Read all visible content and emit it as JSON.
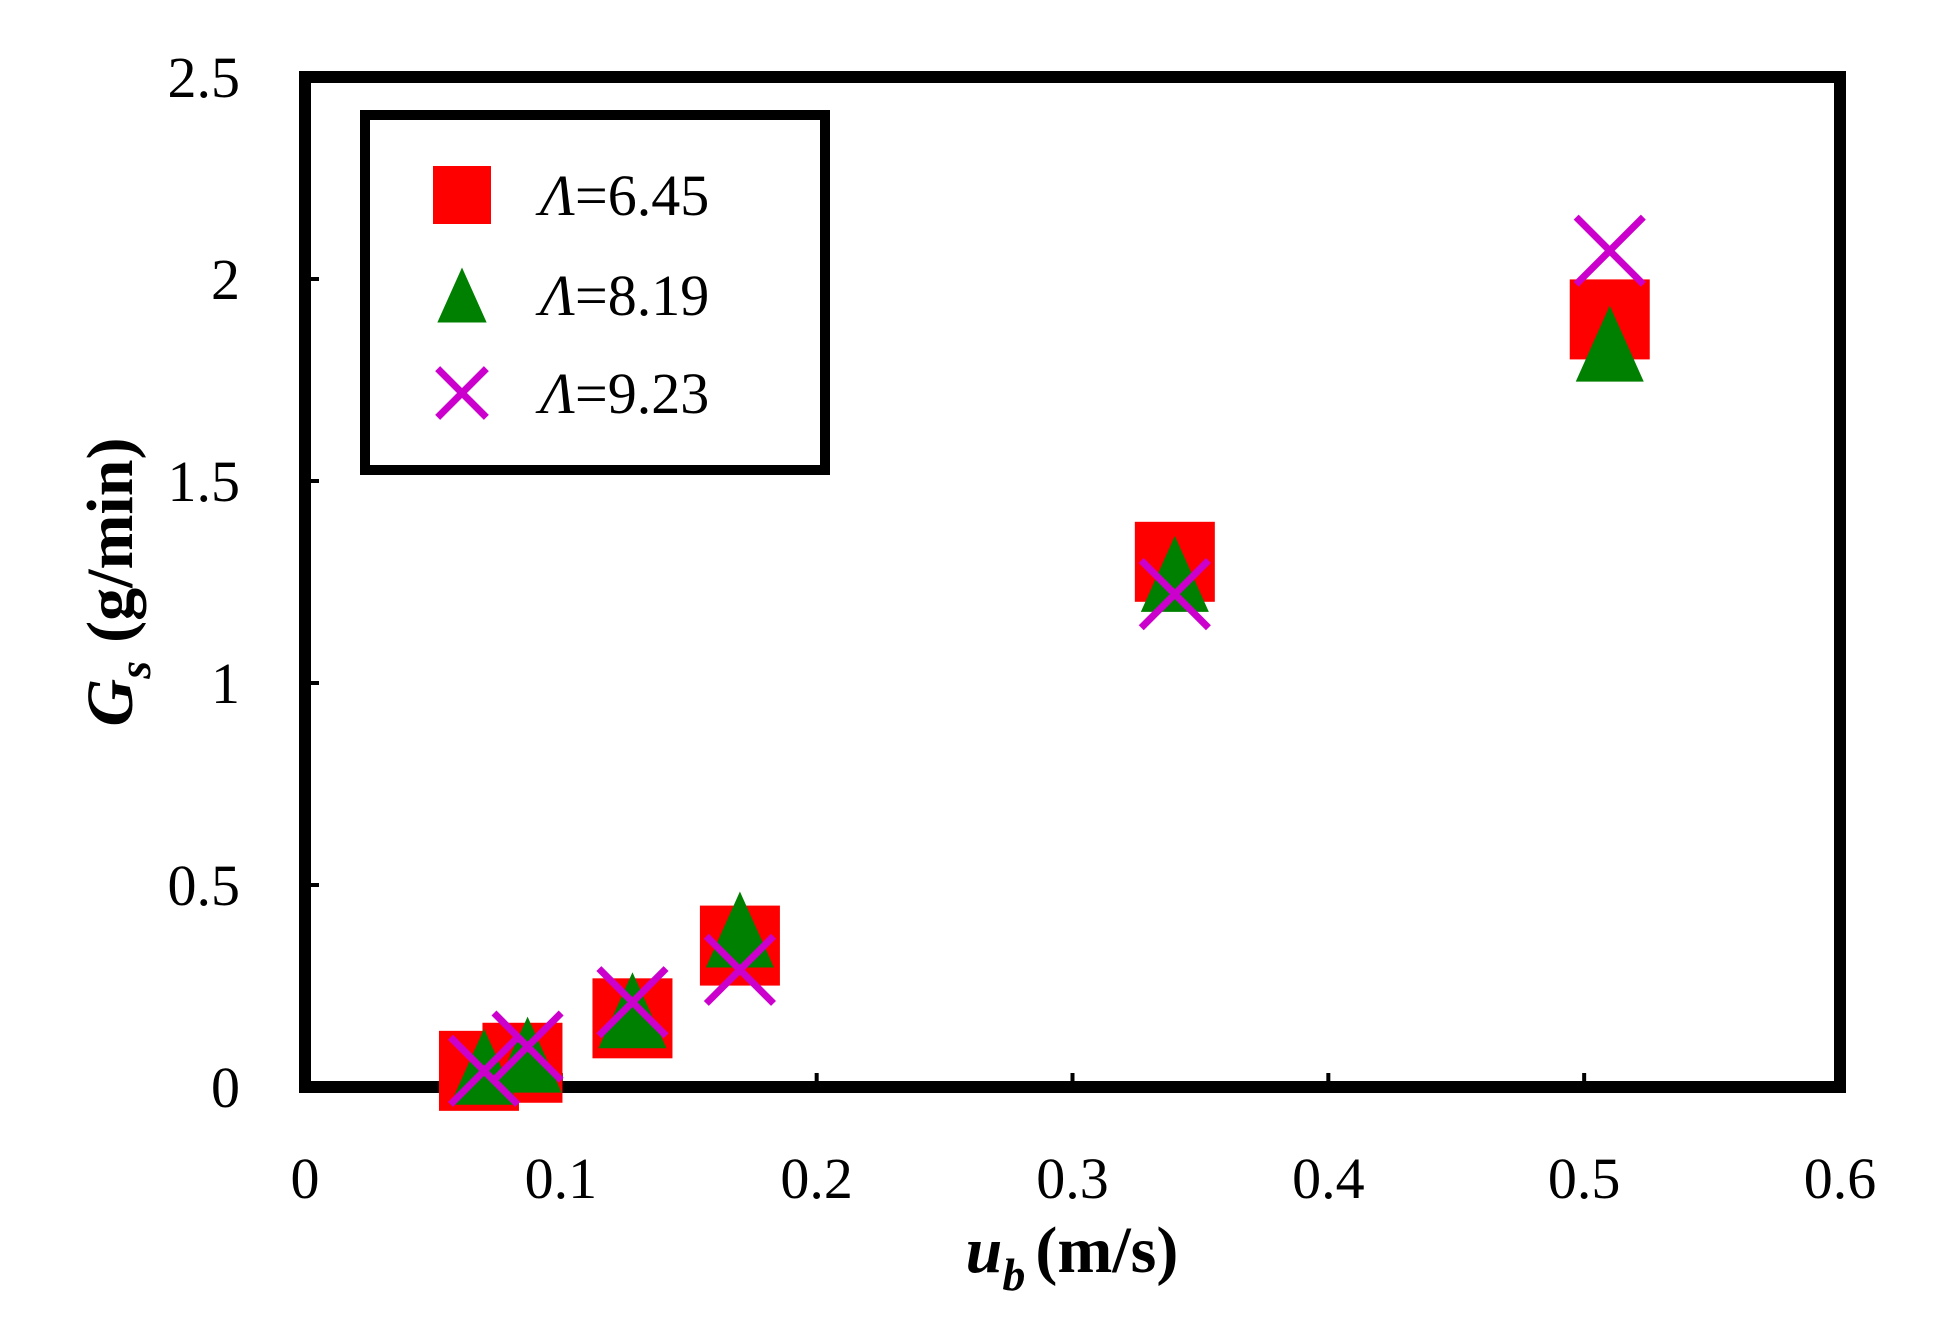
{
  "chart_data": {
    "type": "scatter",
    "title": "",
    "xlabel": {
      "main": "u",
      "sub": "b",
      "unit": "(m/s)"
    },
    "ylabel": {
      "main": "G",
      "sub": "s",
      "unit": "(g/min)"
    },
    "xlim": [
      0,
      0.6
    ],
    "ylim": [
      0,
      2.5
    ],
    "x_ticks": [
      0,
      0.1,
      0.2,
      0.3,
      0.4,
      0.5,
      0.6
    ],
    "x_tick_labels": [
      "0",
      "0.1",
      "0.2",
      "0.3",
      "0.4",
      "0.5",
      "0.6"
    ],
    "y_ticks": [
      0,
      0.5,
      1,
      1.5,
      2,
      2.5
    ],
    "y_tick_labels": [
      "0",
      "0.5",
      "1",
      "1.5",
      "2",
      "2.5"
    ],
    "grid": false,
    "legend_position": "top-left",
    "series": [
      {
        "name": "Λ=6.45",
        "legend_symbol": "Λ",
        "legend_value": "=6.45",
        "marker": "square",
        "color": "#ff0000",
        "x": [
          0.068,
          0.085,
          0.128,
          0.17,
          0.34,
          0.51
        ],
        "y": [
          0.04,
          0.06,
          0.17,
          0.35,
          1.3,
          1.9
        ]
      },
      {
        "name": "Λ=8.19",
        "legend_symbol": "Λ",
        "legend_value": "=8.19",
        "marker": "triangle",
        "color": "#008000",
        "x": [
          0.07,
          0.087,
          0.128,
          0.17,
          0.34,
          0.51
        ],
        "y": [
          0.05,
          0.08,
          0.19,
          0.39,
          1.27,
          1.84
        ]
      },
      {
        "name": "Λ=9.23",
        "legend_symbol": "Λ",
        "legend_value": "=9.23",
        "marker": "cross",
        "color": "#cc00cc",
        "x": [
          0.07,
          0.087,
          0.128,
          0.17,
          0.34,
          0.51
        ],
        "y": [
          0.04,
          0.1,
          0.21,
          0.29,
          1.22,
          2.07
        ]
      }
    ]
  }
}
